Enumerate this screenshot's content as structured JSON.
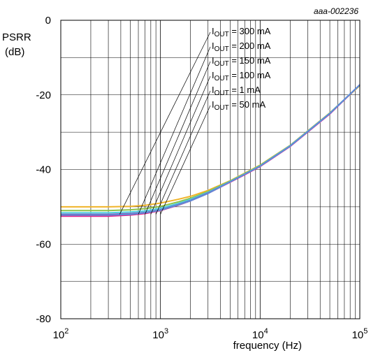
{
  "chart_data": {
    "type": "line",
    "figure_code": "aaa-002236",
    "ylabel_line1": "PSRR",
    "ylabel_line2": "(dB)",
    "xlabel": "frequency (Hz)",
    "x_scale": "log",
    "xlim": [
      100,
      100000
    ],
    "ylim": [
      -80,
      0
    ],
    "grid": true,
    "x_ticks": [
      {
        "base": "10",
        "exp": "2"
      },
      {
        "base": "10",
        "exp": "3"
      },
      {
        "base": "10",
        "exp": "4"
      },
      {
        "base": "10",
        "exp": "5"
      }
    ],
    "y_ticks": [
      "0",
      "-20",
      "-40",
      "-60",
      "-80"
    ],
    "legend": [
      {
        "text": "I",
        "sub": "OUT",
        "value": " = 300 mA",
        "anchor_x": 390
      },
      {
        "text": "I",
        "sub": "OUT",
        "value": " = 200 mA",
        "anchor_x": 600
      },
      {
        "text": "I",
        "sub": "OUT",
        "value": " = 150 mA",
        "anchor_x": 700
      },
      {
        "text": "I",
        "sub": "OUT",
        "value": " = 100 mA",
        "anchor_x": 800
      },
      {
        "text": "I",
        "sub": "OUT",
        "value": " = 1 mA",
        "anchor_x": 900
      },
      {
        "text": "I",
        "sub": "OUT",
        "value": " = 50 mA",
        "anchor_x": 1000
      }
    ],
    "series": [
      {
        "color": "#f0b429",
        "x": [
          100,
          300,
          500,
          700,
          1000,
          1500,
          2000,
          3000,
          5000,
          7000,
          10000,
          20000,
          50000,
          100000
        ],
        "y": [
          -50.0,
          -50.0,
          -49.9,
          -49.6,
          -49.0,
          -48.0,
          -47.2,
          -45.6,
          -43.0,
          -41.0,
          -38.8,
          -33.5,
          -24.8,
          -17.5
        ]
      },
      {
        "color": "#8bc34a",
        "x": [
          100,
          300,
          500,
          700,
          1000,
          1500,
          2000,
          3000,
          5000,
          7000,
          10000,
          20000,
          50000,
          100000
        ],
        "y": [
          -51.0,
          -51.0,
          -50.8,
          -50.5,
          -49.9,
          -48.7,
          -47.7,
          -45.9,
          -43.1,
          -41.1,
          -38.9,
          -33.6,
          -24.9,
          -17.4
        ]
      },
      {
        "color": "#4dd0e1",
        "x": [
          100,
          300,
          500,
          700,
          1000,
          1500,
          2000,
          3000,
          5000,
          7000,
          10000,
          20000,
          50000,
          100000
        ],
        "y": [
          -51.6,
          -51.6,
          -51.4,
          -51.1,
          -50.4,
          -49.1,
          -48.0,
          -46.1,
          -43.2,
          -41.2,
          -39.0,
          -33.6,
          -24.9,
          -17.3
        ]
      },
      {
        "color": "#7c5cbf",
        "x": [
          100,
          300,
          500,
          700,
          1000,
          1500,
          2000,
          3000,
          5000,
          7000,
          10000,
          20000,
          50000,
          100000
        ],
        "y": [
          -52.0,
          -52.0,
          -51.8,
          -51.5,
          -50.8,
          -49.4,
          -48.3,
          -46.3,
          -43.3,
          -41.3,
          -39.1,
          -33.7,
          -25.0,
          -17.3
        ]
      },
      {
        "color": "#e0218a",
        "x": [
          100,
          300,
          500,
          700,
          1000,
          1500,
          2000,
          3000,
          5000,
          7000,
          10000,
          20000,
          50000,
          100000
        ],
        "y": [
          -52.5,
          -52.5,
          -52.2,
          -51.8,
          -51.0,
          -49.6,
          -48.4,
          -46.4,
          -43.4,
          -41.4,
          -39.2,
          -33.8,
          -25.1,
          -17.3
        ]
      },
      {
        "color": "#5b8fd9",
        "x": [
          100,
          300,
          500,
          700,
          1000,
          1500,
          2000,
          3000,
          5000,
          7000,
          10000,
          20000,
          50000,
          100000
        ],
        "y": [
          -52.2,
          -52.2,
          -52.0,
          -51.6,
          -50.9,
          -49.5,
          -48.4,
          -46.4,
          -43.3,
          -41.3,
          -39.1,
          -33.7,
          -25.0,
          -17.3
        ]
      }
    ]
  }
}
